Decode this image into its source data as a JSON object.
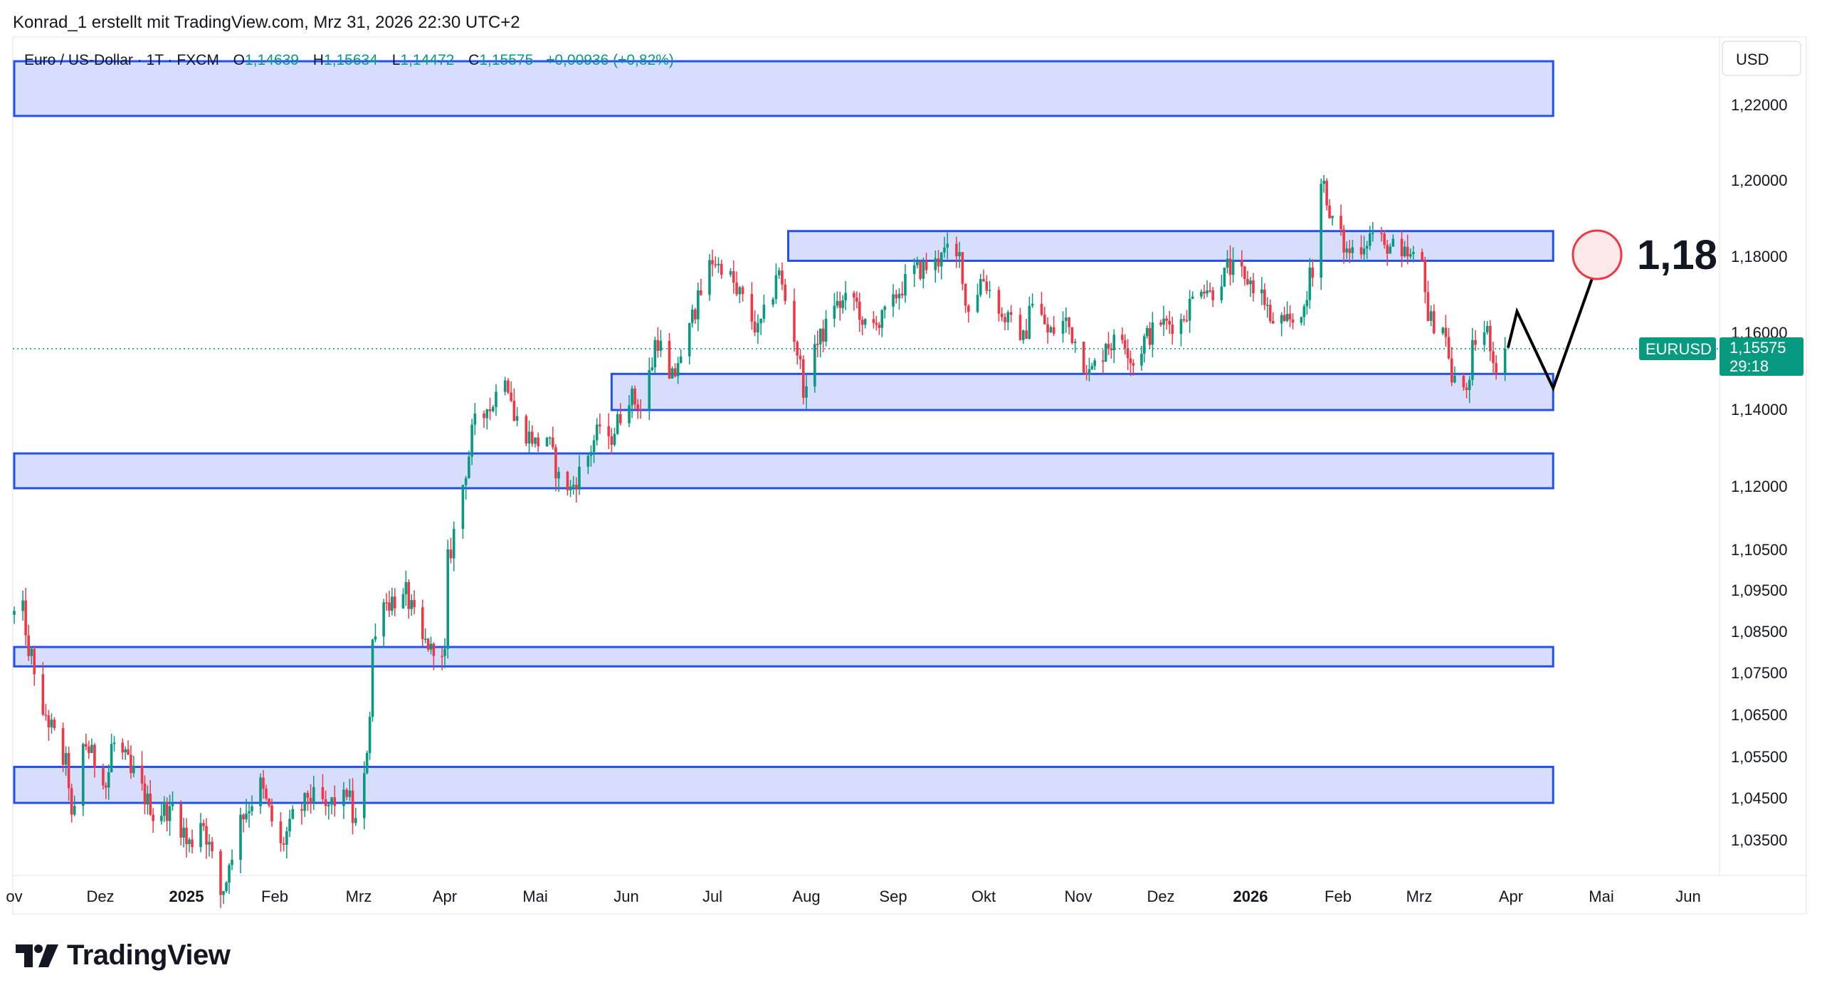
{
  "credit": "Konrad_1 erstellt mit TradingView.com, Mrz 31, 2026 22:30 UTC+2",
  "logo_text": "TradingView",
  "legend": {
    "symbol": "Euro / US-Dollar · 1T · FXCM",
    "o_label": "O",
    "o_value": "1,14639",
    "h_label": "H",
    "h_value": "1,15634",
    "l_label": "L",
    "l_value": "1,14472",
    "c_label": "C",
    "c_value": "1,15575",
    "change": "+0,00936 (+0,82%)"
  },
  "currency_label": "USD",
  "price_tag": {
    "symbol": "EURUSD",
    "price": "1,15575",
    "countdown": "29:18"
  },
  "annotation": {
    "label": "1,18",
    "target": 1.18
  },
  "colors": {
    "up": "#089981",
    "down": "#f23645",
    "zone_fill": "#d6defc",
    "zone_stroke": "#2450f0",
    "grid_text": "#131722",
    "tag_bg": "#089981",
    "circle_stroke": "#f23645",
    "circle_fill": "#fde8ea"
  },
  "chart_data": {
    "type": "candlestick",
    "title": "Euro / US-Dollar · 1T · FXCM",
    "y_ticks": [
      "1,22000",
      "1,20000",
      "1,18000",
      "1,16000",
      "1,14000",
      "1,12000",
      "1,10500",
      "1,09500",
      "1,08500",
      "1,07500",
      "1,06500",
      "1,05500",
      "1,04500",
      "1,03500"
    ],
    "y_tick_values": [
      1.22,
      1.2,
      1.18,
      1.16,
      1.14,
      1.12,
      1.105,
      1.095,
      1.085,
      1.075,
      1.065,
      1.055,
      1.045,
      1.035
    ],
    "x_ticks": [
      {
        "label": "ov",
        "date": "2024-11-01",
        "bold": false
      },
      {
        "label": "Dez",
        "date": "2024-12-01",
        "bold": false
      },
      {
        "label": "2025",
        "date": "2025-01-01",
        "bold": true
      },
      {
        "label": "Feb",
        "date": "2025-02-01",
        "bold": false
      },
      {
        "label": "Mrz",
        "date": "2025-03-01",
        "bold": false
      },
      {
        "label": "Apr",
        "date": "2025-04-01",
        "bold": false
      },
      {
        "label": "Mai",
        "date": "2025-05-01",
        "bold": false
      },
      {
        "label": "Jun",
        "date": "2025-06-01",
        "bold": false
      },
      {
        "label": "Jul",
        "date": "2025-07-01",
        "bold": false
      },
      {
        "label": "Aug",
        "date": "2025-08-01",
        "bold": false
      },
      {
        "label": "Sep",
        "date": "2025-09-01",
        "bold": false
      },
      {
        "label": "Okt",
        "date": "2025-10-01",
        "bold": false
      },
      {
        "label": "Nov",
        "date": "2025-11-01",
        "bold": false
      },
      {
        "label": "Dez",
        "date": "2025-12-01",
        "bold": false
      },
      {
        "label": "2026",
        "date": "2026-01-01",
        "bold": true
      },
      {
        "label": "Feb",
        "date": "2026-02-01",
        "bold": false
      },
      {
        "label": "Mrz",
        "date": "2026-03-01",
        "bold": false
      },
      {
        "label": "Apr",
        "date": "2026-04-01",
        "bold": false
      },
      {
        "label": "Mai",
        "date": "2026-05-01",
        "bold": false
      },
      {
        "label": "Jun",
        "date": "2026-06-01",
        "bold": false
      }
    ],
    "last_price": 1.15575,
    "zones": [
      {
        "from": "2024-11-01",
        "to": "2026-04-15",
        "low": 1.217,
        "high": 1.2315
      },
      {
        "from": "2025-07-26",
        "to": "2026-04-15",
        "low": 1.1788,
        "high": 1.1866
      },
      {
        "from": "2025-05-27",
        "to": "2026-04-15",
        "low": 1.1398,
        "high": 1.1492
      },
      {
        "from": "2024-11-01",
        "to": "2026-04-15",
        "low": 1.1195,
        "high": 1.1285
      },
      {
        "from": "2024-11-01",
        "to": "2026-04-15",
        "low": 1.0765,
        "high": 1.0812
      },
      {
        "from": "2024-11-01",
        "to": "2026-04-15",
        "low": 1.0438,
        "high": 1.0525
      }
    ],
    "projection": [
      {
        "date": "2026-03-31",
        "value": 1.156
      },
      {
        "date": "2026-04-03",
        "value": 1.1655
      },
      {
        "date": "2026-04-15",
        "value": 1.1455
      },
      {
        "date": "2026-05-01",
        "value": 1.181
      }
    ],
    "anchors": [
      [
        "2024-11-01",
        1.089
      ],
      [
        "2024-11-03",
        1.093
      ],
      [
        "2024-11-07",
        1.079
      ],
      [
        "2024-11-12",
        1.065
      ],
      [
        "2024-11-19",
        1.053
      ],
      [
        "2024-11-22",
        1.041
      ],
      [
        "2024-11-26",
        1.058
      ],
      [
        "2024-12-03",
        1.048
      ],
      [
        "2024-12-06",
        1.058
      ],
      [
        "2024-12-13",
        1.051
      ],
      [
        "2024-12-20",
        1.041
      ],
      [
        "2024-12-27",
        1.043
      ],
      [
        "2025-01-02",
        1.034
      ],
      [
        "2025-01-07",
        1.039
      ],
      [
        "2025-01-13",
        1.022
      ],
      [
        "2025-01-17",
        1.029
      ],
      [
        "2025-01-21",
        1.041
      ],
      [
        "2025-01-27",
        1.048
      ],
      [
        "2025-02-03",
        1.033
      ],
      [
        "2025-02-07",
        1.04
      ],
      [
        "2025-02-13",
        1.045
      ],
      [
        "2025-02-19",
        1.043
      ],
      [
        "2025-02-25",
        1.047
      ],
      [
        "2025-02-28",
        1.039
      ],
      [
        "2025-03-03",
        1.049
      ],
      [
        "2025-03-07",
        1.083
      ],
      [
        "2025-03-11",
        1.092
      ],
      [
        "2025-03-18",
        1.094
      ],
      [
        "2025-03-24",
        1.082
      ],
      [
        "2025-03-28",
        1.082
      ],
      [
        "2025-04-01",
        1.079
      ],
      [
        "2025-04-03",
        1.105
      ],
      [
        "2025-04-11",
        1.136
      ],
      [
        "2025-04-16",
        1.14
      ],
      [
        "2025-04-21",
        1.15
      ],
      [
        "2025-04-25",
        1.137
      ],
      [
        "2025-05-01",
        1.131
      ],
      [
        "2025-05-05",
        1.133
      ],
      [
        "2025-05-09",
        1.122
      ],
      [
        "2025-05-13",
        1.119
      ],
      [
        "2025-05-19",
        1.128
      ],
      [
        "2025-05-23",
        1.136
      ],
      [
        "2025-05-27",
        1.133
      ],
      [
        "2025-06-02",
        1.144
      ],
      [
        "2025-06-06",
        1.14
      ],
      [
        "2025-06-12",
        1.158
      ],
      [
        "2025-06-17",
        1.148
      ],
      [
        "2025-06-20",
        1.152
      ],
      [
        "2025-06-25",
        1.166
      ],
      [
        "2025-07-01",
        1.179
      ],
      [
        "2025-07-04",
        1.178
      ],
      [
        "2025-07-10",
        1.17
      ],
      [
        "2025-07-16",
        1.16
      ],
      [
        "2025-07-23",
        1.175
      ],
      [
        "2025-07-28",
        1.159
      ],
      [
        "2025-08-01",
        1.143
      ],
      [
        "2025-08-05",
        1.157
      ],
      [
        "2025-08-12",
        1.167
      ],
      [
        "2025-08-18",
        1.169
      ],
      [
        "2025-08-22",
        1.162
      ],
      [
        "2025-08-27",
        1.162
      ],
      [
        "2025-09-02",
        1.17
      ],
      [
        "2025-09-08",
        1.176
      ],
      [
        "2025-09-15",
        1.178
      ],
      [
        "2025-09-18",
        1.181
      ],
      [
        "2025-09-23",
        1.18
      ],
      [
        "2025-09-26",
        1.167
      ],
      [
        "2025-10-01",
        1.174
      ],
      [
        "2025-10-08",
        1.164
      ],
      [
        "2025-10-14",
        1.158
      ],
      [
        "2025-10-17",
        1.167
      ],
      [
        "2025-10-23",
        1.16
      ],
      [
        "2025-10-28",
        1.163
      ],
      [
        "2025-11-05",
        1.149
      ],
      [
        "2025-11-12",
        1.157
      ],
      [
        "2025-11-18",
        1.158
      ],
      [
        "2025-11-21",
        1.152
      ],
      [
        "2025-11-26",
        1.159
      ],
      [
        "2025-12-02",
        1.162
      ],
      [
        "2025-12-08",
        1.163
      ],
      [
        "2025-12-15",
        1.173
      ],
      [
        "2025-12-19",
        1.171
      ],
      [
        "2025-12-24",
        1.177
      ],
      [
        "2025-12-31",
        1.174
      ],
      [
        "2026-01-05",
        1.17
      ],
      [
        "2026-01-09",
        1.163
      ],
      [
        "2026-01-14",
        1.163
      ],
      [
        "2026-01-20",
        1.164
      ],
      [
        "2026-01-23",
        1.177
      ],
      [
        "2026-01-27",
        1.199
      ],
      [
        "2026-01-30",
        1.19
      ],
      [
        "2026-02-04",
        1.181
      ],
      [
        "2026-02-09",
        1.183
      ],
      [
        "2026-02-13",
        1.186
      ],
      [
        "2026-02-18",
        1.183
      ],
      [
        "2026-02-24",
        1.18
      ],
      [
        "2026-03-02",
        1.178
      ],
      [
        "2026-03-05",
        1.163
      ],
      [
        "2026-03-09",
        1.162
      ],
      [
        "2026-03-13",
        1.147
      ],
      [
        "2026-03-18",
        1.145
      ],
      [
        "2026-03-20",
        1.158
      ],
      [
        "2026-03-24",
        1.16
      ],
      [
        "2026-03-27",
        1.152
      ],
      [
        "2026-03-31",
        1.15575
      ]
    ]
  }
}
